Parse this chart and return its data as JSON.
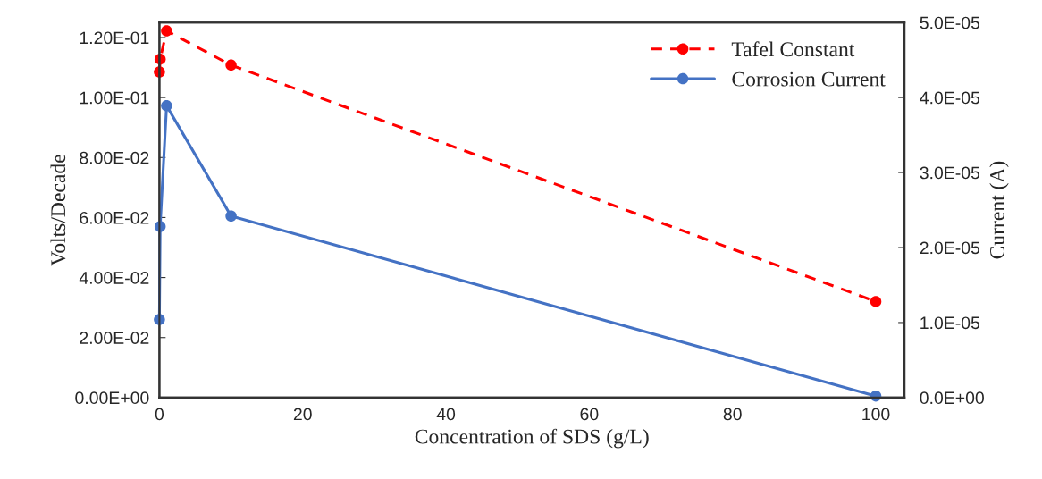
{
  "chart_data": {
    "type": "line",
    "xlabel": "Concentration of SDS (g/L)",
    "ylabel": "Volts/Decade",
    "y2label": "Current (A)",
    "xlim": [
      0,
      104
    ],
    "xticks": [
      0,
      20,
      40,
      60,
      80,
      100
    ],
    "ylim": [
      0,
      0.125
    ],
    "yticks": [
      {
        "value": 0,
        "label": "0.00E+00"
      },
      {
        "value": 0.02,
        "label": "2.00E-02"
      },
      {
        "value": 0.04,
        "label": "4.00E-02"
      },
      {
        "value": 0.06,
        "label": "6.00E-02"
      },
      {
        "value": 0.08,
        "label": "8.00E-02"
      },
      {
        "value": 0.1,
        "label": "1.00E-01"
      },
      {
        "value": 0.12,
        "label": "1.20E-01"
      }
    ],
    "y2lim": [
      0,
      5e-05
    ],
    "y2ticks": [
      {
        "value": 0,
        "label": "0.0E+00"
      },
      {
        "value": 1e-05,
        "label": "1.0E-05"
      },
      {
        "value": 2e-05,
        "label": "2.0E-05"
      },
      {
        "value": 3e-05,
        "label": "3.0E-05"
      },
      {
        "value": 4e-05,
        "label": "4.0E-05"
      },
      {
        "value": 5e-05,
        "label": "5.0E-05"
      }
    ],
    "grid": false,
    "legend": "top right",
    "marker": "circle",
    "series": [
      {
        "name": "Tafel Constant",
        "color": "#ff0000",
        "line_style": "dashed",
        "x": [
          0,
          0.1,
          1,
          10,
          100
        ],
        "values": [
          0.1085,
          0.1128,
          0.1222,
          0.1108,
          0.032
        ]
      },
      {
        "name": "Corrosion Current",
        "color": "#4472c4",
        "line_style": "solid",
        "axis": "y2",
        "x": [
          0,
          0.1,
          1,
          10,
          100
        ],
        "values": [
          1.04e-05,
          2.28e-05,
          3.89e-05,
          2.42e-05,
          2e-07
        ]
      }
    ]
  }
}
